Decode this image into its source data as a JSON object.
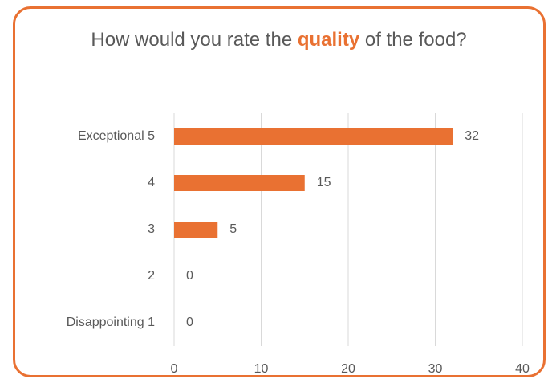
{
  "chart_data": {
    "type": "bar",
    "orientation": "horizontal",
    "title_parts": [
      "How would you rate the",
      "quality",
      "of the food?"
    ],
    "title_highlight_color": "#e97132",
    "categories": [
      "Exceptional 5",
      "4",
      "3",
      "2",
      "Disappointing 1"
    ],
    "values": [
      32,
      15,
      5,
      0,
      0
    ],
    "color": "#e97132",
    "xlim": [
      0,
      40
    ],
    "xticks": [
      0,
      10,
      20,
      30,
      40
    ],
    "grid": true
  }
}
